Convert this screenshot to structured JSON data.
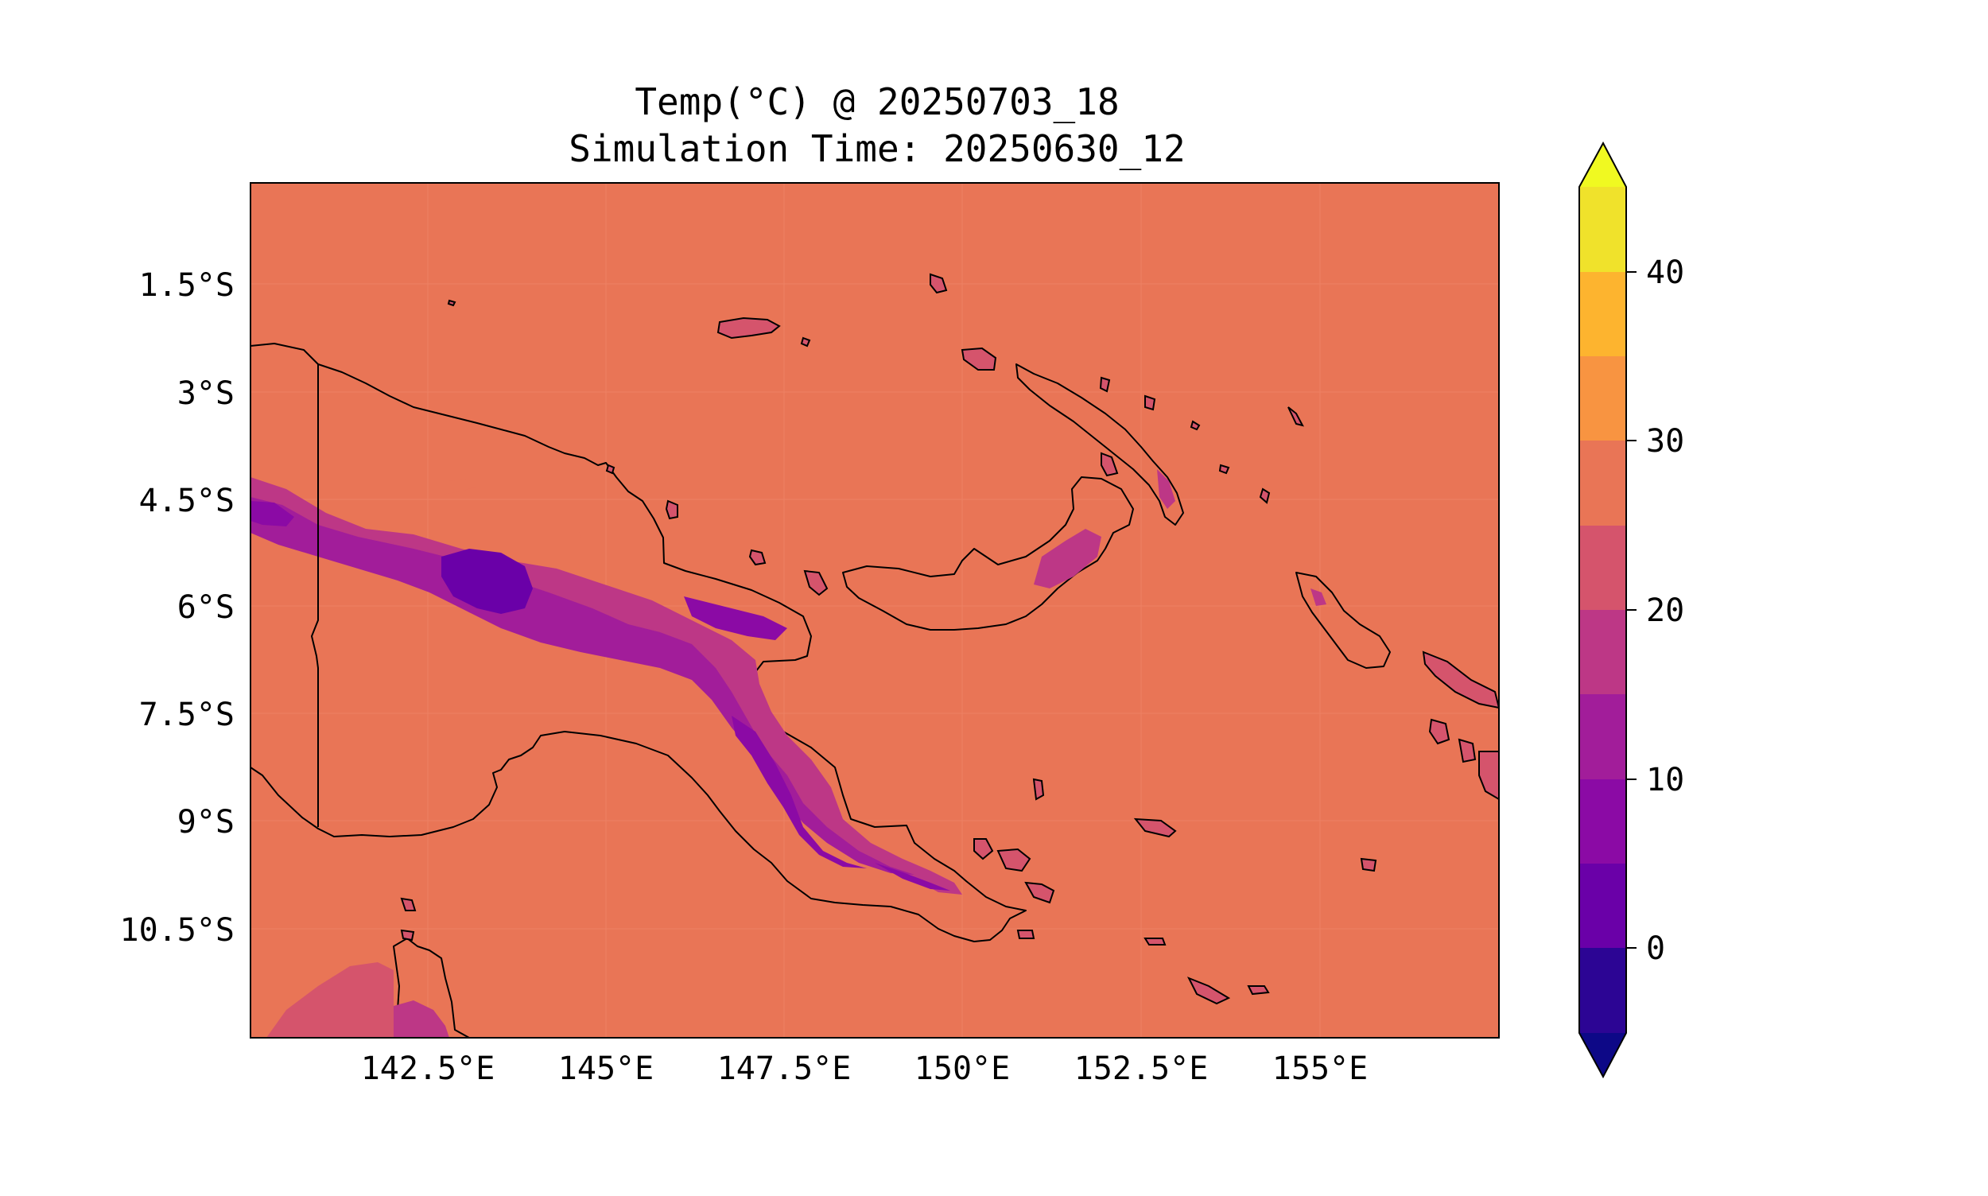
{
  "title": {
    "line1": "Temp(°C) @ 20250703_18",
    "line2": "Simulation Time: 20250630_12"
  },
  "map": {
    "x_ticks": [
      "142.5°E",
      "145°E",
      "147.5°E",
      "150°E",
      "152.5°E",
      "155°E"
    ],
    "y_ticks": [
      "1.5°S",
      "3°S",
      "4.5°S",
      "6°S",
      "7.5°S",
      "9°S",
      "10.5°S"
    ],
    "ocean_color": "#e97556",
    "land_color": "#d5546c"
  },
  "colorbar": {
    "tick_labels": [
      "0",
      "10",
      "20",
      "30",
      "40"
    ],
    "levels_colors": [
      "#0d0887",
      "#2c0594",
      "#4903a0",
      "#6a00a8",
      "#8b0aa5",
      "#a21d9a",
      "#bd3786",
      "#d5546c",
      "#e97556",
      "#f89441",
      "#fdb42f",
      "#f0e22b",
      "#f0f921"
    ]
  }
}
